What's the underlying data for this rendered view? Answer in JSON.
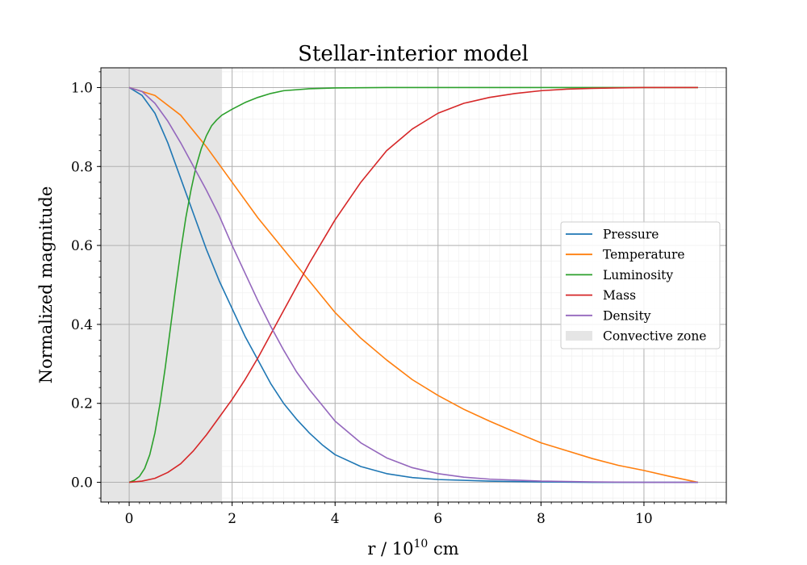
{
  "chart_data": {
    "type": "line",
    "title": "Stellar-interior model",
    "xlabel_base": "r / 10",
    "xlabel_exp": "10",
    "xlabel_unit": " cm",
    "ylabel": "Normalized magnitude",
    "xlim": [
      -0.55,
      11.6
    ],
    "ylim": [
      -0.05,
      1.05
    ],
    "xticks": [
      0,
      2,
      4,
      6,
      8,
      10
    ],
    "xtick_labels": [
      "0",
      "2",
      "4",
      "6",
      "8",
      "10"
    ],
    "yticks": [
      0.0,
      0.2,
      0.4,
      0.6,
      0.8,
      1.0
    ],
    "ytick_labels": [
      "0.0",
      "0.2",
      "0.4",
      "0.6",
      "0.8",
      "1.0"
    ],
    "grid": true,
    "minor_grid": true,
    "legend_position": "center-right",
    "shaded_region": {
      "label": "Convective zone",
      "x": [
        -0.55,
        1.8
      ],
      "color": "#e5e5e5"
    },
    "series": [
      {
        "name": "Pressure",
        "color": "#1f77b4",
        "points": [
          [
            0,
            1.0
          ],
          [
            0.25,
            0.98
          ],
          [
            0.5,
            0.935
          ],
          [
            0.75,
            0.86
          ],
          [
            1.0,
            0.77
          ],
          [
            1.25,
            0.68
          ],
          [
            1.5,
            0.59
          ],
          [
            1.75,
            0.51
          ],
          [
            2.0,
            0.44
          ],
          [
            2.25,
            0.37
          ],
          [
            2.5,
            0.31
          ],
          [
            2.75,
            0.25
          ],
          [
            3.0,
            0.2
          ],
          [
            3.25,
            0.16
          ],
          [
            3.5,
            0.125
          ],
          [
            3.75,
            0.095
          ],
          [
            4.0,
            0.07
          ],
          [
            4.5,
            0.04
          ],
          [
            5.0,
            0.022
          ],
          [
            5.5,
            0.012
          ],
          [
            6.0,
            0.007
          ],
          [
            7.0,
            0.003
          ],
          [
            8.0,
            0.001
          ],
          [
            9.0,
            0.0
          ],
          [
            10.0,
            0.0
          ],
          [
            11.05,
            0.0
          ]
        ]
      },
      {
        "name": "Temperature",
        "color": "#ff7f0e",
        "points": [
          [
            0,
            1.0
          ],
          [
            0.5,
            0.98
          ],
          [
            1.0,
            0.93
          ],
          [
            1.5,
            0.85
          ],
          [
            2.0,
            0.76
          ],
          [
            2.5,
            0.67
          ],
          [
            3.0,
            0.59
          ],
          [
            3.5,
            0.51
          ],
          [
            4.0,
            0.43
          ],
          [
            4.5,
            0.365
          ],
          [
            5.0,
            0.31
          ],
          [
            5.5,
            0.26
          ],
          [
            6.0,
            0.22
          ],
          [
            6.5,
            0.185
          ],
          [
            7.0,
            0.155
          ],
          [
            7.5,
            0.127
          ],
          [
            8.0,
            0.1
          ],
          [
            8.5,
            0.08
          ],
          [
            9.0,
            0.06
          ],
          [
            9.5,
            0.043
          ],
          [
            10.0,
            0.03
          ],
          [
            10.5,
            0.015
          ],
          [
            11.05,
            0.0
          ]
        ]
      },
      {
        "name": "Luminosity",
        "color": "#2ca02c",
        "points": [
          [
            0,
            0.0
          ],
          [
            0.1,
            0.005
          ],
          [
            0.2,
            0.015
          ],
          [
            0.3,
            0.035
          ],
          [
            0.4,
            0.07
          ],
          [
            0.5,
            0.125
          ],
          [
            0.6,
            0.2
          ],
          [
            0.7,
            0.29
          ],
          [
            0.8,
            0.39
          ],
          [
            0.9,
            0.49
          ],
          [
            1.0,
            0.585
          ],
          [
            1.1,
            0.67
          ],
          [
            1.2,
            0.74
          ],
          [
            1.3,
            0.8
          ],
          [
            1.4,
            0.845
          ],
          [
            1.5,
            0.878
          ],
          [
            1.6,
            0.903
          ],
          [
            1.7,
            0.918
          ],
          [
            1.8,
            0.93
          ],
          [
            2.0,
            0.945
          ],
          [
            2.25,
            0.962
          ],
          [
            2.5,
            0.975
          ],
          [
            2.75,
            0.985
          ],
          [
            3.0,
            0.992
          ],
          [
            3.5,
            0.997
          ],
          [
            4.0,
            0.999
          ],
          [
            5.0,
            1.0
          ],
          [
            11.05,
            1.0
          ]
        ]
      },
      {
        "name": "Mass",
        "color": "#d62728",
        "points": [
          [
            0,
            0.0
          ],
          [
            0.25,
            0.003
          ],
          [
            0.5,
            0.01
          ],
          [
            0.75,
            0.025
          ],
          [
            1.0,
            0.047
          ],
          [
            1.25,
            0.08
          ],
          [
            1.5,
            0.12
          ],
          [
            1.75,
            0.165
          ],
          [
            2.0,
            0.21
          ],
          [
            2.25,
            0.26
          ],
          [
            2.5,
            0.315
          ],
          [
            2.75,
            0.375
          ],
          [
            3.0,
            0.435
          ],
          [
            3.25,
            0.495
          ],
          [
            3.5,
            0.555
          ],
          [
            3.75,
            0.61
          ],
          [
            4.0,
            0.665
          ],
          [
            4.5,
            0.76
          ],
          [
            5.0,
            0.84
          ],
          [
            5.5,
            0.895
          ],
          [
            6.0,
            0.935
          ],
          [
            6.5,
            0.96
          ],
          [
            7.0,
            0.975
          ],
          [
            7.5,
            0.985
          ],
          [
            8.0,
            0.992
          ],
          [
            8.5,
            0.996
          ],
          [
            9.0,
            0.998
          ],
          [
            10.0,
            1.0
          ],
          [
            11.05,
            1.0
          ]
        ]
      },
      {
        "name": "Density",
        "color": "#9467bd",
        "points": [
          [
            0,
            1.0
          ],
          [
            0.25,
            0.99
          ],
          [
            0.5,
            0.96
          ],
          [
            0.75,
            0.915
          ],
          [
            1.0,
            0.86
          ],
          [
            1.25,
            0.8
          ],
          [
            1.5,
            0.74
          ],
          [
            1.75,
            0.675
          ],
          [
            2.0,
            0.6
          ],
          [
            2.25,
            0.53
          ],
          [
            2.5,
            0.46
          ],
          [
            2.75,
            0.395
          ],
          [
            3.0,
            0.335
          ],
          [
            3.25,
            0.28
          ],
          [
            3.5,
            0.235
          ],
          [
            3.75,
            0.195
          ],
          [
            4.0,
            0.155
          ],
          [
            4.5,
            0.1
          ],
          [
            5.0,
            0.062
          ],
          [
            5.5,
            0.037
          ],
          [
            6.0,
            0.022
          ],
          [
            6.5,
            0.013
          ],
          [
            7.0,
            0.008
          ],
          [
            8.0,
            0.003
          ],
          [
            9.0,
            0.001
          ],
          [
            10.0,
            0.0
          ],
          [
            11.05,
            0.0
          ]
        ]
      }
    ]
  }
}
